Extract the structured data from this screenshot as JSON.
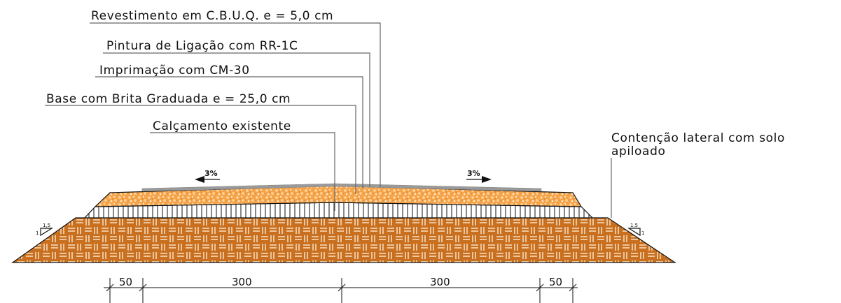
{
  "labels": {
    "revestimento": "Revestimento em C.B.U.Q. e = 5,0 cm",
    "pintura": "Pintura de Ligação com RR-1C",
    "imprimacao": "Imprimação com CM-30",
    "base": "Base com Brita Graduada e = 25,0 cm",
    "calcamento": "Calçamento existente",
    "contencao_l1": "Contenção lateral com solo",
    "contencao_l2": "apiloado"
  },
  "slopes": {
    "left": "3%",
    "right": "3%"
  },
  "talude": {
    "h": "1,5",
    "v": "1"
  },
  "dimensions": [
    "50",
    "300",
    "300",
    "50"
  ],
  "colors": {
    "gravel": "#f39a3c",
    "embankment": "#c8701f",
    "asphalt": "#999999",
    "outline": "#111111"
  }
}
